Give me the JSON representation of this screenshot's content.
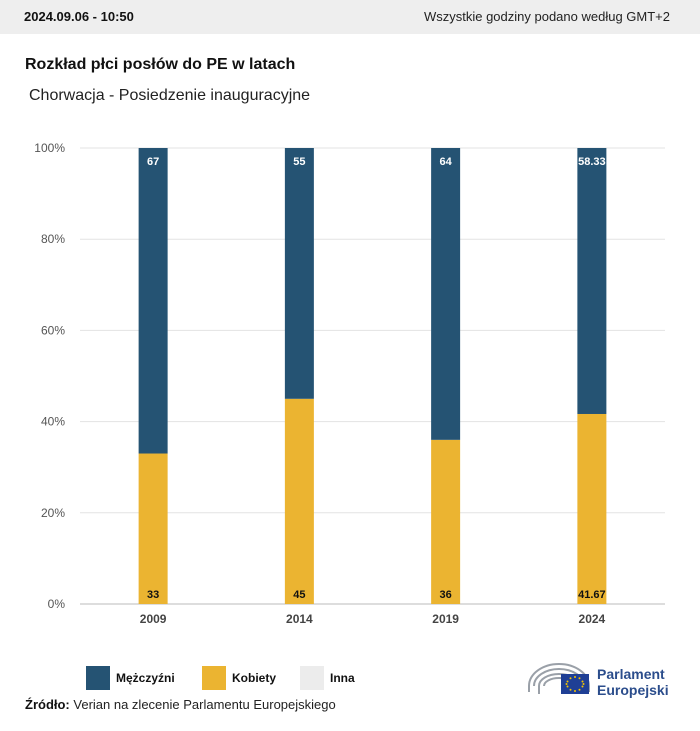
{
  "header": {
    "timestamp": "2024.09.06 - 10:50",
    "timezone_note": "Wszystkie godziny podano według GMT+2"
  },
  "chart_data": {
    "type": "bar",
    "stacked": true,
    "title": "Rozkład płci posłów do PE w latach",
    "subtitle": "Chorwacja - Posiedzenie inauguracyjne",
    "categories": [
      "2009",
      "2014",
      "2019",
      "2024"
    ],
    "series": [
      {
        "name": "Kobiety",
        "values": [
          33,
          45,
          36,
          41.67
        ],
        "color": "#ebb431"
      },
      {
        "name": "Mężczyźni",
        "values": [
          67,
          55,
          64,
          58.33
        ],
        "color": "#255373"
      },
      {
        "name": "Inna",
        "values": [
          0,
          0,
          0,
          0
        ],
        "color": "#ececec"
      }
    ],
    "y_ticks": [
      "0%",
      "20%",
      "40%",
      "60%",
      "80%",
      "100%"
    ],
    "ylim": [
      0,
      100
    ],
    "grid": true,
    "legend_position": "bottom-left"
  },
  "legend": [
    {
      "label": "Mężczyźni",
      "color": "#255373"
    },
    {
      "label": "Kobiety",
      "color": "#ebb431"
    },
    {
      "label": "Inna",
      "color": "#ececec"
    }
  ],
  "footer": {
    "source_label": "Źródło:",
    "source_text": "Verian na zlecenie Parlamentu Europejskiego",
    "logo_line1": "Parlament",
    "logo_line2": "Europejski"
  }
}
